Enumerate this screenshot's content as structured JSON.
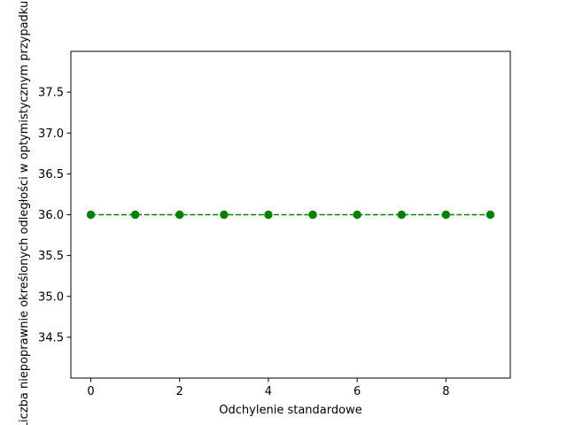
{
  "chart_data": {
    "type": "line",
    "title": "",
    "xlabel": "Odchylenie standardowe",
    "ylabel": "Liczba niepoprawnie określonych odległości w optymistycznym przypadku",
    "xlim": [
      -0.45,
      9.45
    ],
    "ylim": [
      34.0,
      38.0
    ],
    "x_ticks": [
      0,
      2,
      4,
      6,
      8
    ],
    "y_ticks": [
      34.5,
      35.0,
      35.5,
      36.0,
      36.5,
      37.0,
      37.5
    ],
    "x_tick_labels": [
      "0",
      "2",
      "4",
      "6",
      "8"
    ],
    "y_tick_labels": [
      "34.5",
      "35.0",
      "35.5",
      "36.0",
      "36.5",
      "37.0",
      "37.5"
    ],
    "grid": false,
    "series": [
      {
        "x": [
          0,
          1,
          2,
          3,
          4,
          5,
          6,
          7,
          8,
          9
        ],
        "y": [
          36,
          36,
          36,
          36,
          36,
          36,
          36,
          36,
          36,
          36
        ],
        "color": "#008000",
        "line_style": "dashed",
        "marker": "circle"
      }
    ]
  }
}
